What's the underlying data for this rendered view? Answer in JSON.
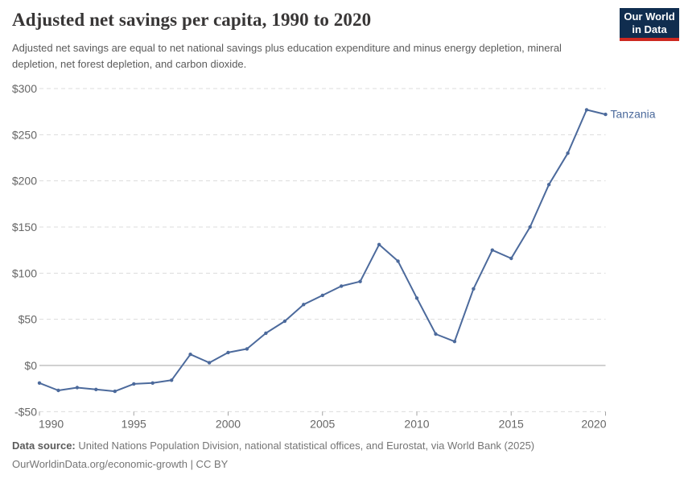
{
  "header": {
    "title": "Adjusted net savings per capita, 1990 to 2020",
    "subtitle": "Adjusted net savings are equal to net national savings plus education expenditure and minus energy depletion, mineral depletion, net forest depletion, and carbon dioxide.",
    "logo": {
      "line1": "Our World",
      "line2": "in Data"
    }
  },
  "colors": {
    "line": "#4c6a9c",
    "grid": "#dcdcdc",
    "zero_line": "#a3a3a3",
    "axis_text": "#666666",
    "tick_mark": "#a3a3a3",
    "title": "#383636",
    "subtitle": "#5b5b5b",
    "footer": "#757575",
    "logo_bg": "#102d4f",
    "logo_stripe": "#cd2820"
  },
  "chart_data": {
    "type": "line",
    "title": "Adjusted net savings per capita, 1990 to 2020",
    "xlabel": "",
    "ylabel": "",
    "xlim": [
      1990,
      2020
    ],
    "ylim": [
      -50,
      300
    ],
    "grid": "horizontal-dashed",
    "zero_line": true,
    "legend_position": "end-of-line-label",
    "x_ticks": [
      1990,
      1995,
      2000,
      2005,
      2010,
      2015,
      2020
    ],
    "y_ticks": [
      -50,
      0,
      50,
      100,
      150,
      200,
      250,
      300
    ],
    "y_tick_labels": [
      "-$50",
      "$0",
      "$50",
      "$100",
      "$150",
      "$200",
      "$250",
      "$300"
    ],
    "series": [
      {
        "name": "Tanzania",
        "color": "#4c6a9c",
        "x": [
          1990,
          1991,
          1992,
          1993,
          1994,
          1995,
          1996,
          1997,
          1998,
          1999,
          2000,
          2001,
          2002,
          2003,
          2004,
          2005,
          2006,
          2007,
          2008,
          2009,
          2010,
          2011,
          2012,
          2013,
          2014,
          2015,
          2016,
          2017,
          2018,
          2019,
          2020
        ],
        "values": [
          -19,
          -27,
          -24,
          -26,
          -28,
          -20,
          -19,
          -16,
          12,
          3,
          14,
          18,
          35,
          48,
          66,
          76,
          86,
          91,
          131,
          113,
          73,
          34,
          26,
          83,
          125,
          116,
          150,
          196,
          230,
          277,
          272
        ]
      }
    ]
  },
  "footer": {
    "source_label": "Data source:",
    "source_text": " United Nations Population Division, national statistical offices, and Eurostat, via World Bank (2025)",
    "note_line": "OurWorldinData.org/economic-growth | CC BY"
  }
}
